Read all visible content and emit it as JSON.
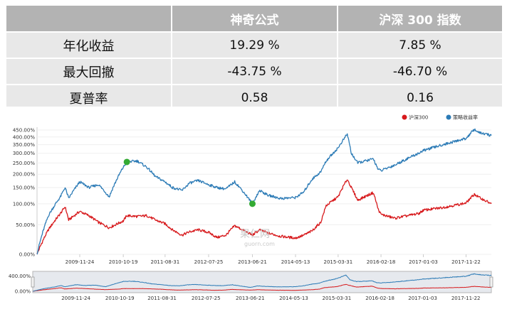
{
  "table": {
    "headers": [
      "",
      "神奇公式",
      "沪深 300 指数"
    ],
    "rows": [
      {
        "label": "年化收益",
        "values": [
          "19.29 %",
          "7.85 %"
        ]
      },
      {
        "label": "最大回撤",
        "values": [
          "-43.75 %",
          "-46.70 %"
        ]
      },
      {
        "label": "夏普率",
        "values": [
          "0.58",
          "0.16"
        ]
      }
    ]
  },
  "chart_data": {
    "type": "line",
    "title": "",
    "xlabel": "",
    "ylabel": "",
    "y_scale": "log",
    "y_ticks": [
      "0.00%",
      "50.00%",
      "100.00%",
      "150.00%",
      "200.00%",
      "250.00%",
      "300.00%",
      "350.00%",
      "400.00%",
      "450.00%"
    ],
    "x_ticks": [
      "2009-11-24",
      "2010-10-19",
      "2011-08-31",
      "2012-07-25",
      "2013-06-21",
      "2014-05-13",
      "2015-03-31",
      "2016-02-18",
      "2017-01-03",
      "2017-11-22"
    ],
    "legend_position": "top-right",
    "series": [
      {
        "name": "沪深300",
        "color": "#d7191c",
        "x": [
          "2009-01-05",
          "2009-04-01",
          "2009-07-01",
          "2009-08-05",
          "2009-09-01",
          "2009-11-24",
          "2010-02-01",
          "2010-04-15",
          "2010-07-05",
          "2010-10-19",
          "2010-11-15",
          "2011-02-01",
          "2011-04-15",
          "2011-06-20",
          "2011-08-31",
          "2011-10-25",
          "2012-01-06",
          "2012-03-01",
          "2012-05-08",
          "2012-07-25",
          "2012-09-26",
          "2012-12-03",
          "2013-02-07",
          "2013-06-21",
          "2013-08-15",
          "2013-10-15",
          "2014-01-20",
          "2014-05-13",
          "2014-07-15",
          "2014-09-15",
          "2014-11-20",
          "2014-12-31",
          "2015-03-31",
          "2015-06-08",
          "2015-07-08",
          "2015-08-26",
          "2015-12-22",
          "2016-01-28",
          "2016-02-18",
          "2016-06-01",
          "2016-11-29",
          "2017-01-03",
          "2017-06-01",
          "2017-11-22",
          "2018-01-24",
          "2018-03-01",
          "2018-06-01"
        ],
        "values": [
          0,
          40,
          75,
          92,
          60,
          80,
          70,
          55,
          44,
          58,
          70,
          68,
          70,
          60,
          52,
          40,
          30,
          36,
          40,
          35,
          26,
          30,
          48,
          30,
          40,
          34,
          28,
          25,
          30,
          38,
          55,
          95,
          120,
          180,
          150,
          110,
          133,
          85,
          73,
          64,
          75,
          83,
          90,
          102,
          128,
          118,
          100
        ]
      },
      {
        "name": "策略收益率",
        "color": "#2c7bb6",
        "x": [
          "2009-01-05",
          "2009-04-01",
          "2009-07-01",
          "2009-08-05",
          "2009-09-01",
          "2009-11-24",
          "2010-02-01",
          "2010-04-15",
          "2010-07-05",
          "2010-10-19",
          "2010-11-15",
          "2011-02-01",
          "2011-04-15",
          "2011-06-20",
          "2011-08-31",
          "2011-10-25",
          "2012-01-06",
          "2012-03-01",
          "2012-05-08",
          "2012-07-25",
          "2012-09-26",
          "2012-12-03",
          "2013-02-07",
          "2013-06-21",
          "2013-08-15",
          "2013-10-15",
          "2014-01-20",
          "2014-05-13",
          "2014-07-15",
          "2014-09-15",
          "2014-11-20",
          "2014-12-31",
          "2015-03-31",
          "2015-06-08",
          "2015-07-08",
          "2015-08-26",
          "2015-12-22",
          "2016-01-28",
          "2016-02-18",
          "2016-06-01",
          "2016-11-29",
          "2017-01-03",
          "2017-06-01",
          "2017-11-22",
          "2018-01-24",
          "2018-03-01",
          "2018-06-01"
        ],
        "values": [
          0,
          70,
          120,
          150,
          115,
          170,
          150,
          160,
          120,
          230,
          255,
          260,
          230,
          190,
          170,
          150,
          140,
          165,
          175,
          160,
          150,
          145,
          170,
          100,
          140,
          125,
          115,
          118,
          135,
          180,
          210,
          260,
          330,
          420,
          300,
          250,
          270,
          220,
          215,
          240,
          300,
          315,
          350,
          390,
          455,
          430,
          410
        ]
      }
    ],
    "markers": [
      {
        "x": "2010-11-15",
        "value": 255,
        "color": "#33aa33"
      },
      {
        "x": "2013-06-21",
        "value": 100,
        "color": "#33aa33"
      }
    ],
    "navigator": {
      "y_ticks": [
        "400.00%",
        "0.00%"
      ],
      "x_ticks": [
        "2009-11-24",
        "2010-10-19",
        "2011-08-31",
        "2012-07-25",
        "2013-06-21",
        "2014-05-13",
        "2015-03-31",
        "2016-02-18",
        "2017-01-03",
        "2017-11-22"
      ]
    },
    "watermark": {
      "text1": "果仁网",
      "text2": "guorn.com"
    }
  }
}
